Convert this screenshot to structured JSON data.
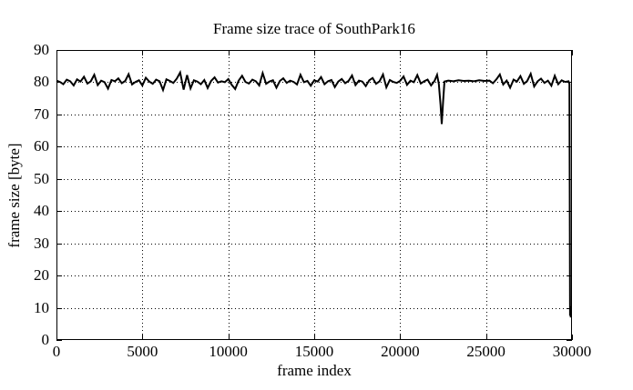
{
  "chart_data": {
    "type": "line",
    "title": "Frame size trace of SouthPark16",
    "xlabel": "frame index",
    "ylabel": "frame size [byte]",
    "xlim": [
      0,
      30000
    ],
    "ylim": [
      0,
      90
    ],
    "xticks": [
      0,
      5000,
      10000,
      15000,
      20000,
      25000,
      30000
    ],
    "yticks": [
      0,
      10,
      20,
      30,
      40,
      50,
      60,
      70,
      80,
      90
    ],
    "grid": true,
    "grid_style": "dotted",
    "legend": "none",
    "background_color": "#ffffff",
    "axis_color": "#000000",
    "line_color": "#000000",
    "series": [
      {
        "name": "frame size",
        "points": [
          [
            0,
            80.5
          ],
          [
            200,
            80.1
          ],
          [
            400,
            79.4
          ],
          [
            600,
            80.8
          ],
          [
            800,
            80.3
          ],
          [
            1000,
            79.0
          ],
          [
            1200,
            80.9
          ],
          [
            1400,
            80.2
          ],
          [
            1600,
            81.7
          ],
          [
            1800,
            79.6
          ],
          [
            2000,
            80.3
          ],
          [
            2200,
            82.3
          ],
          [
            2400,
            79.1
          ],
          [
            2600,
            80.5
          ],
          [
            2800,
            80.0
          ],
          [
            3000,
            78.0
          ],
          [
            3200,
            80.7
          ],
          [
            3400,
            80.3
          ],
          [
            3600,
            81.2
          ],
          [
            3800,
            79.7
          ],
          [
            4000,
            80.4
          ],
          [
            4200,
            82.5
          ],
          [
            4400,
            79.3
          ],
          [
            4600,
            80.1
          ],
          [
            4800,
            80.6
          ],
          [
            5000,
            79.0
          ],
          [
            5200,
            81.4
          ],
          [
            5400,
            80.2
          ],
          [
            5600,
            79.5
          ],
          [
            5800,
            80.8
          ],
          [
            6000,
            80.3
          ],
          [
            6200,
            77.6
          ],
          [
            6400,
            80.9
          ],
          [
            6600,
            80.4
          ],
          [
            6800,
            79.8
          ],
          [
            7000,
            81.1
          ],
          [
            7200,
            83.0
          ],
          [
            7400,
            77.7
          ],
          [
            7600,
            82.2
          ],
          [
            7800,
            78.1
          ],
          [
            8000,
            80.6
          ],
          [
            8200,
            80.2
          ],
          [
            8400,
            79.4
          ],
          [
            8600,
            80.7
          ],
          [
            8800,
            78.2
          ],
          [
            9000,
            80.4
          ],
          [
            9200,
            81.5
          ],
          [
            9400,
            79.9
          ],
          [
            9600,
            80.3
          ],
          [
            9800,
            80.0
          ],
          [
            10000,
            81.0
          ],
          [
            10200,
            79.2
          ],
          [
            10400,
            77.9
          ],
          [
            10600,
            80.5
          ],
          [
            10800,
            82.0
          ],
          [
            11000,
            80.1
          ],
          [
            11200,
            79.6
          ],
          [
            11400,
            80.8
          ],
          [
            11600,
            80.3
          ],
          [
            11800,
            79.0
          ],
          [
            12000,
            82.8
          ],
          [
            12200,
            79.5
          ],
          [
            12400,
            80.2
          ],
          [
            12600,
            80.6
          ],
          [
            12800,
            78.3
          ],
          [
            13000,
            80.4
          ],
          [
            13200,
            81.2
          ],
          [
            13400,
            79.8
          ],
          [
            13600,
            80.5
          ],
          [
            13800,
            80.1
          ],
          [
            14000,
            79.3
          ],
          [
            14200,
            82.3
          ],
          [
            14400,
            80.0
          ],
          [
            14600,
            80.4
          ],
          [
            14800,
            78.9
          ],
          [
            15000,
            80.6
          ],
          [
            15200,
            80.2
          ],
          [
            15400,
            81.6
          ],
          [
            15600,
            79.4
          ],
          [
            15800,
            80.3
          ],
          [
            16000,
            80.7
          ],
          [
            16200,
            78.5
          ],
          [
            16400,
            80.2
          ],
          [
            16600,
            81.0
          ],
          [
            16800,
            79.7
          ],
          [
            17000,
            80.4
          ],
          [
            17200,
            82.1
          ],
          [
            17400,
            79.1
          ],
          [
            17600,
            80.5
          ],
          [
            17800,
            80.2
          ],
          [
            18000,
            78.8
          ],
          [
            18200,
            80.6
          ],
          [
            18400,
            81.3
          ],
          [
            18600,
            79.5
          ],
          [
            18800,
            80.3
          ],
          [
            19000,
            82.4
          ],
          [
            19200,
            78.4
          ],
          [
            19400,
            80.7
          ],
          [
            19600,
            80.1
          ],
          [
            19800,
            79.8
          ],
          [
            20000,
            80.4
          ],
          [
            20200,
            81.8
          ],
          [
            20400,
            79.2
          ],
          [
            20600,
            80.5
          ],
          [
            20800,
            80.0
          ],
          [
            21000,
            82.2
          ],
          [
            21200,
            79.6
          ],
          [
            21400,
            80.3
          ],
          [
            21600,
            80.8
          ],
          [
            21800,
            79.0
          ],
          [
            22000,
            80.4
          ],
          [
            22150,
            82.3
          ],
          [
            22250,
            79.5
          ],
          [
            22350,
            73.0
          ],
          [
            22420,
            67.0
          ],
          [
            22500,
            74.0
          ],
          [
            22580,
            80.2
          ],
          [
            22800,
            80.5
          ],
          [
            23100,
            80.3
          ],
          [
            23400,
            80.6
          ],
          [
            23700,
            80.4
          ],
          [
            24000,
            80.5
          ],
          [
            24300,
            80.3
          ],
          [
            24600,
            80.6
          ],
          [
            24900,
            80.4
          ],
          [
            25200,
            80.5
          ],
          [
            25400,
            79.7
          ],
          [
            25600,
            80.9
          ],
          [
            25800,
            82.4
          ],
          [
            26000,
            79.3
          ],
          [
            26200,
            80.5
          ],
          [
            26400,
            78.3
          ],
          [
            26600,
            80.8
          ],
          [
            26800,
            80.2
          ],
          [
            27000,
            81.9
          ],
          [
            27200,
            79.5
          ],
          [
            27400,
            80.4
          ],
          [
            27600,
            82.6
          ],
          [
            27800,
            78.7
          ],
          [
            28000,
            80.3
          ],
          [
            28200,
            81.1
          ],
          [
            28400,
            79.8
          ],
          [
            28600,
            80.5
          ],
          [
            28800,
            78.9
          ],
          [
            29000,
            82.0
          ],
          [
            29200,
            79.4
          ],
          [
            29400,
            80.6
          ],
          [
            29600,
            80.1
          ],
          [
            29800,
            80.3
          ],
          [
            29850,
            79.5
          ],
          [
            29870,
            50.0
          ],
          [
            29890,
            7.5
          ],
          [
            29910,
            10.5
          ],
          [
            29930,
            7.0
          ]
        ]
      }
    ]
  }
}
